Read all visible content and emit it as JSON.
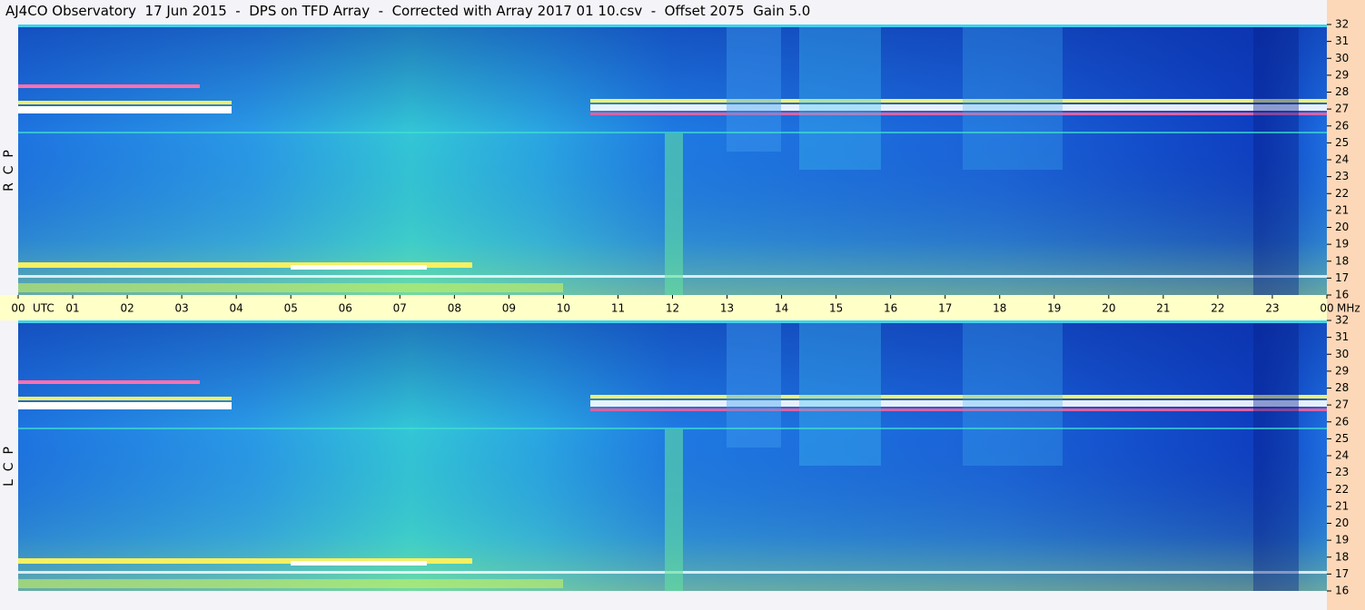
{
  "chart_data": {
    "type": "spectrogram",
    "title": "AJ4CO Observatory  17 Jun 2015  -  DPS on TFD Array  -  Corrected with Array 2017 01 10.csv  -  Offset 2075  Gain 5.0",
    "x_unit": "UTC",
    "y_unit": "MHz",
    "xlim": [
      0,
      24
    ],
    "xticks": [
      {
        "value": 0,
        "label": "00"
      },
      {
        "value": 1,
        "label": "01"
      },
      {
        "value": 2,
        "label": "02"
      },
      {
        "value": 3,
        "label": "03"
      },
      {
        "value": 4,
        "label": "04"
      },
      {
        "value": 5,
        "label": "05"
      },
      {
        "value": 6,
        "label": "06"
      },
      {
        "value": 7,
        "label": "07"
      },
      {
        "value": 8,
        "label": "08"
      },
      {
        "value": 9,
        "label": "09"
      },
      10,
      11,
      12,
      13,
      14,
      15,
      16,
      17,
      18,
      19,
      20,
      21,
      22,
      23,
      {
        "value": 24,
        "label": "00"
      }
    ],
    "ylim": [
      16,
      32
    ],
    "yticks": [
      16,
      17,
      18,
      19,
      20,
      21,
      22,
      23,
      24,
      25,
      26,
      27,
      28,
      29,
      30,
      31,
      32
    ],
    "panels": [
      {
        "label": "R  C  P"
      },
      {
        "label": "L  C  P"
      }
    ]
  }
}
